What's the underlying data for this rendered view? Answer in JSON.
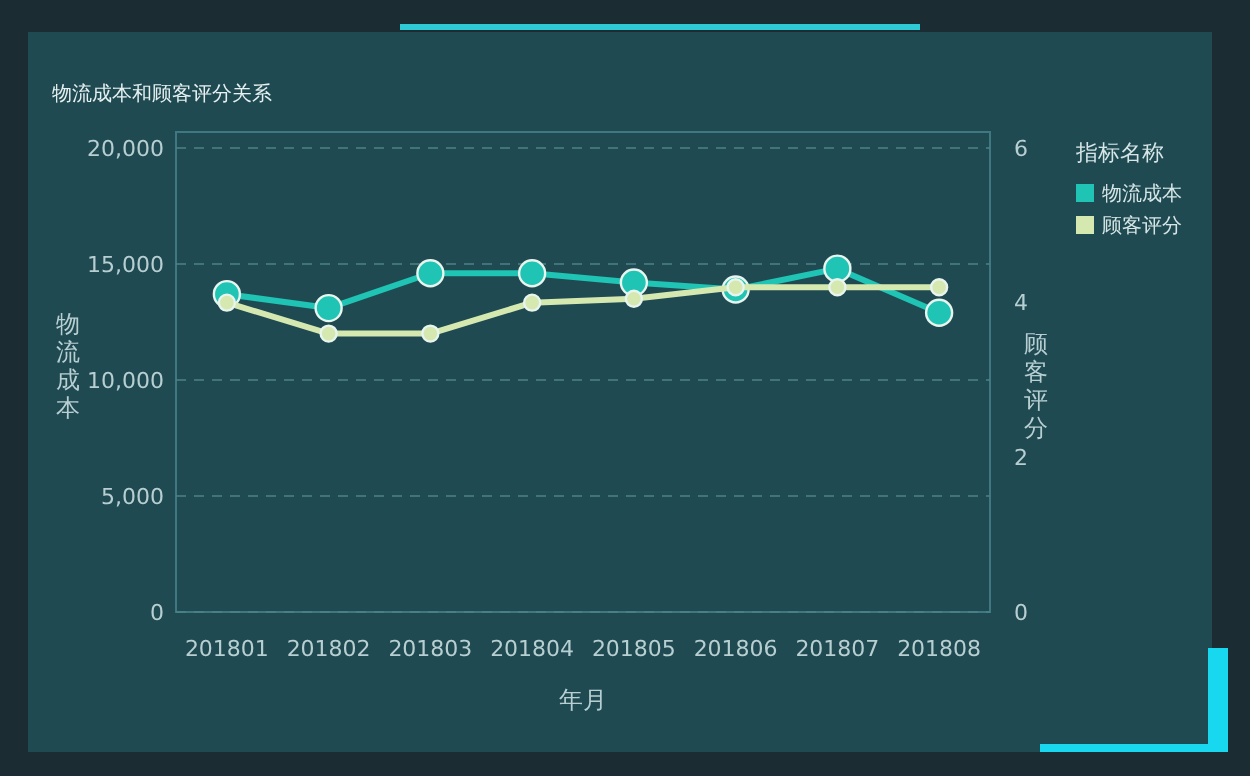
{
  "chart_data": {
    "type": "line",
    "title": "物流成本和顾客评分关系",
    "xlabel": "年月",
    "ylabel": "物流成本",
    "y2label": "顾客评分",
    "legend_title": "指标名称",
    "categories": [
      "201801",
      "201802",
      "201803",
      "201804",
      "201805",
      "201806",
      "201807",
      "201808"
    ],
    "series": [
      {
        "name": "物流成本",
        "color": "#1fc4b4",
        "values": [
          13700,
          13100,
          14600,
          14600,
          14200,
          13900,
          14800,
          12900
        ]
      },
      {
        "name": "顾客评分",
        "color": "#d5e8b0",
        "axis": "y2",
        "values": [
          4.0,
          3.6,
          3.6,
          4.0,
          4.05,
          4.2,
          4.2,
          4.2
        ]
      }
    ],
    "ylim": [
      0,
      20000
    ],
    "yticks": [
      {
        "value": 0,
        "label": "0"
      },
      {
        "value": 5000,
        "label": "5,000"
      },
      {
        "value": 10000,
        "label": "10,000"
      },
      {
        "value": 15000,
        "label": "15,000"
      },
      {
        "value": 20000,
        "label": "20,000"
      }
    ],
    "y2lim": [
      0,
      6
    ],
    "y2ticks": [
      0,
      2,
      4,
      6
    ],
    "grid": "y",
    "legend": "top right",
    "marker": "circle",
    "line_style": "solid"
  }
}
